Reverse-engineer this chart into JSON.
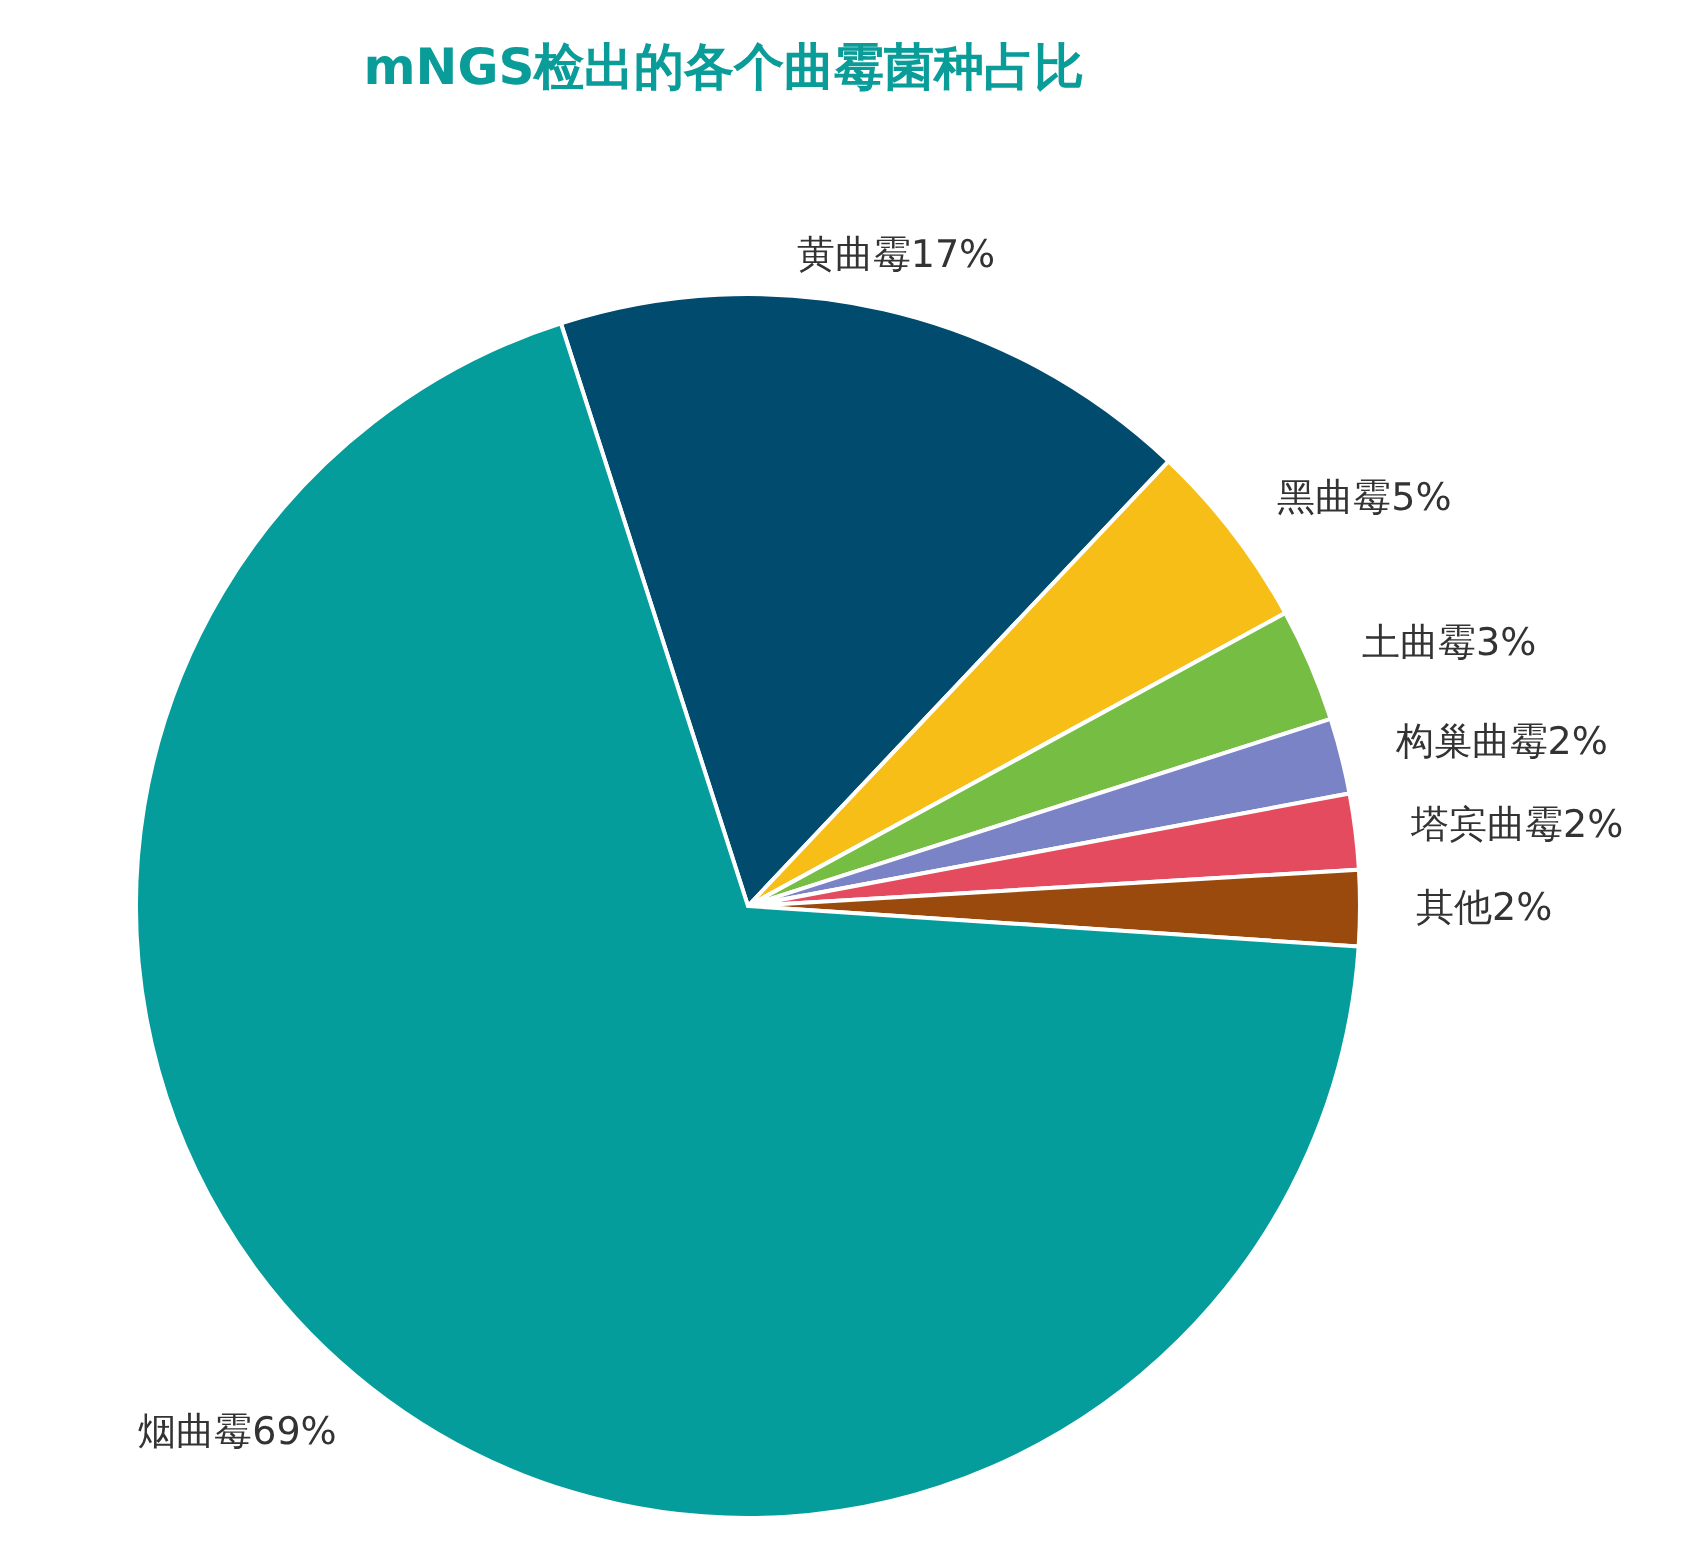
{
  "chart_data": {
    "type": "pie",
    "title": "mNGS检出的各个曲霉菌种占比",
    "categories": [
      "黄曲霉",
      "黑曲霉",
      "土曲霉",
      "构巢曲霉",
      "塔宾曲霉",
      "其他",
      "烟曲霉"
    ],
    "values": [
      17,
      5,
      3,
      2,
      2,
      2,
      69
    ],
    "value_labels": [
      "17%",
      "5%",
      "3%",
      "2%",
      "2%",
      "2%",
      "69%"
    ],
    "colors": [
      "#014b6e",
      "#f7be17",
      "#76bd43",
      "#7a83c6",
      "#e54b5e",
      "#9a4a0c",
      "#059c9c"
    ]
  }
}
